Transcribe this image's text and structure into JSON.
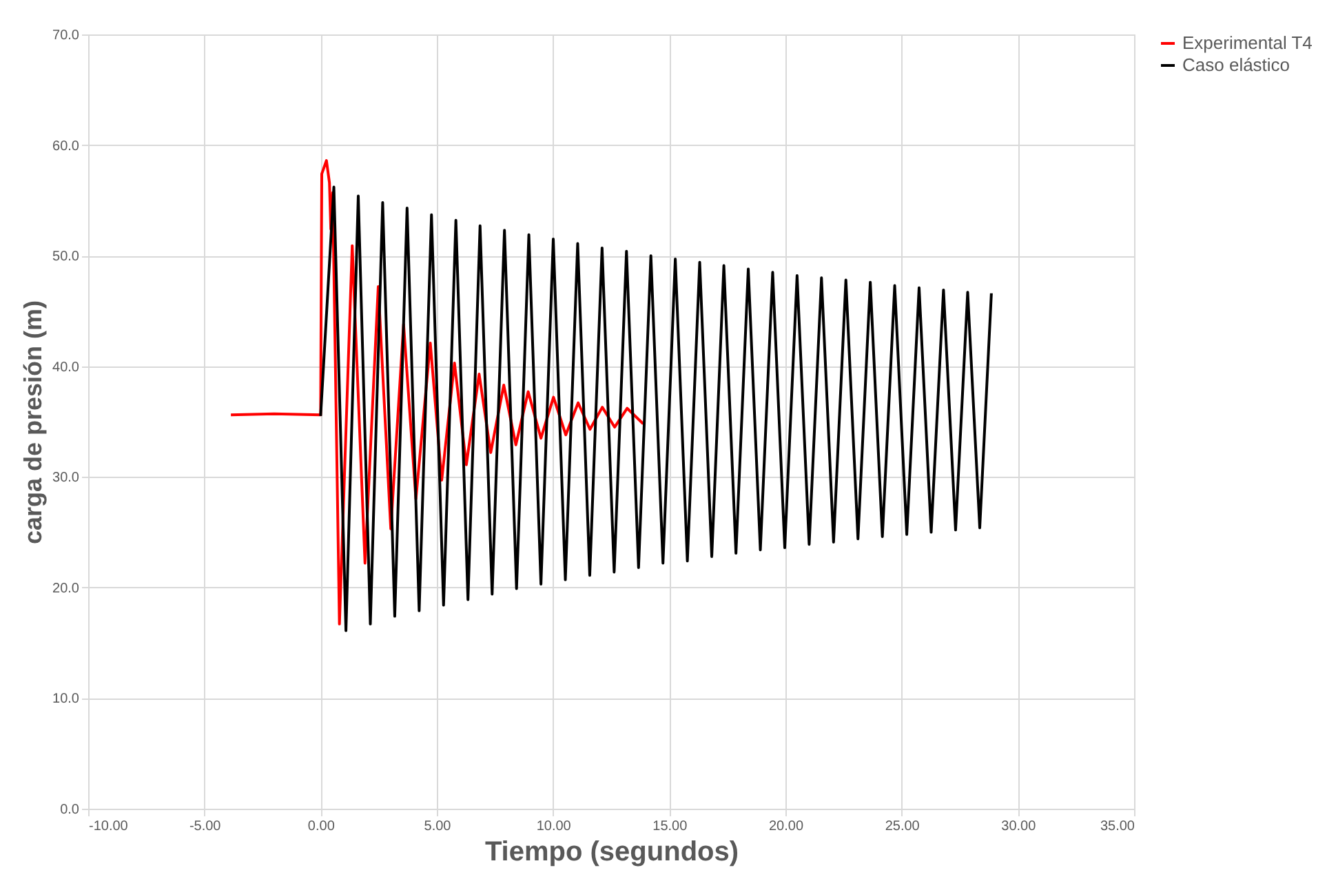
{
  "chart_data": {
    "type": "line",
    "xlabel": "Tiempo (segundos)",
    "ylabel": "carga de presión (m)",
    "xlim": [
      -10,
      35
    ],
    "ylim": [
      0,
      70
    ],
    "xticks": [
      {
        "value": -10,
        "label": "-10.00"
      },
      {
        "value": -5,
        "label": "-5.00"
      },
      {
        "value": 0,
        "label": "0.00"
      },
      {
        "value": 5,
        "label": "5.00"
      },
      {
        "value": 10,
        "label": "10.00"
      },
      {
        "value": 15,
        "label": "15.00"
      },
      {
        "value": 20,
        "label": "20.00"
      },
      {
        "value": 25,
        "label": "25.00"
      },
      {
        "value": 30,
        "label": "30.00"
      },
      {
        "value": 35,
        "label": "35.00"
      }
    ],
    "yticks": [
      {
        "value": 0,
        "label": "0.0"
      },
      {
        "value": 10,
        "label": "10.0"
      },
      {
        "value": 20,
        "label": "20.0"
      },
      {
        "value": 30,
        "label": "30.0"
      },
      {
        "value": 40,
        "label": "40.0"
      },
      {
        "value": 50,
        "label": "50.0"
      },
      {
        "value": 60,
        "label": "60.0"
      },
      {
        "value": 70,
        "label": "70.0"
      }
    ],
    "grid": true,
    "legend": "right",
    "marker": "none",
    "line_style": "solid",
    "series": [
      {
        "name": "Experimental T4",
        "color": "#ff0000",
        "x": [
          -3.86,
          -2.0,
          0.0,
          0.05,
          0.25,
          0.38,
          0.44,
          0.52,
          0.81,
          1.36,
          1.91,
          2.48,
          3.02,
          3.57,
          4.1,
          4.72,
          5.21,
          5.76,
          6.27,
          6.82,
          7.32,
          7.88,
          8.4,
          8.93,
          9.48,
          10.02,
          10.55,
          11.08,
          11.59,
          12.12,
          12.65,
          13.19,
          13.88
        ],
        "values": [
          35.6,
          35.7,
          35.6,
          57.4,
          58.6,
          56.6,
          52.4,
          55.7,
          16.7,
          50.9,
          22.2,
          47.2,
          25.3,
          43.8,
          28.0,
          42.1,
          29.7,
          40.3,
          31.1,
          39.3,
          32.2,
          38.3,
          32.9,
          37.7,
          33.5,
          37.2,
          33.8,
          36.7,
          34.3,
          36.3,
          34.5,
          36.2,
          34.8
        ]
      },
      {
        "name": "Caso elástico",
        "color": "#000000",
        "x": [
          0.0,
          0.57,
          1.09,
          1.62,
          2.14,
          2.67,
          3.19,
          3.72,
          4.24,
          4.77,
          5.29,
          5.82,
          6.34,
          6.86,
          7.38,
          7.91,
          8.43,
          8.96,
          9.48,
          10.01,
          10.53,
          11.06,
          11.58,
          12.11,
          12.63,
          13.16,
          13.68,
          14.21,
          14.73,
          15.26,
          15.78,
          16.31,
          16.83,
          17.35,
          17.87,
          18.4,
          18.92,
          19.45,
          19.97,
          20.5,
          21.02,
          21.55,
          22.07,
          22.6,
          23.12,
          23.65,
          24.17,
          24.7,
          25.22,
          25.75,
          26.27,
          26.8,
          27.32,
          27.84,
          28.36,
          28.86
        ],
        "values": [
          35.5,
          56.2,
          16.1,
          55.4,
          16.7,
          54.8,
          17.4,
          54.3,
          17.9,
          53.7,
          18.4,
          53.2,
          18.9,
          52.7,
          19.4,
          52.3,
          19.9,
          51.9,
          20.3,
          51.5,
          20.7,
          51.1,
          21.1,
          50.7,
          21.4,
          50.4,
          21.8,
          50.0,
          22.2,
          49.7,
          22.4,
          49.4,
          22.8,
          49.1,
          23.1,
          48.8,
          23.4,
          48.5,
          23.6,
          48.2,
          23.9,
          48.0,
          24.1,
          47.8,
          24.4,
          47.6,
          24.6,
          47.3,
          24.8,
          47.1,
          25.0,
          46.9,
          25.2,
          46.7,
          25.4,
          46.6
        ]
      }
    ]
  }
}
